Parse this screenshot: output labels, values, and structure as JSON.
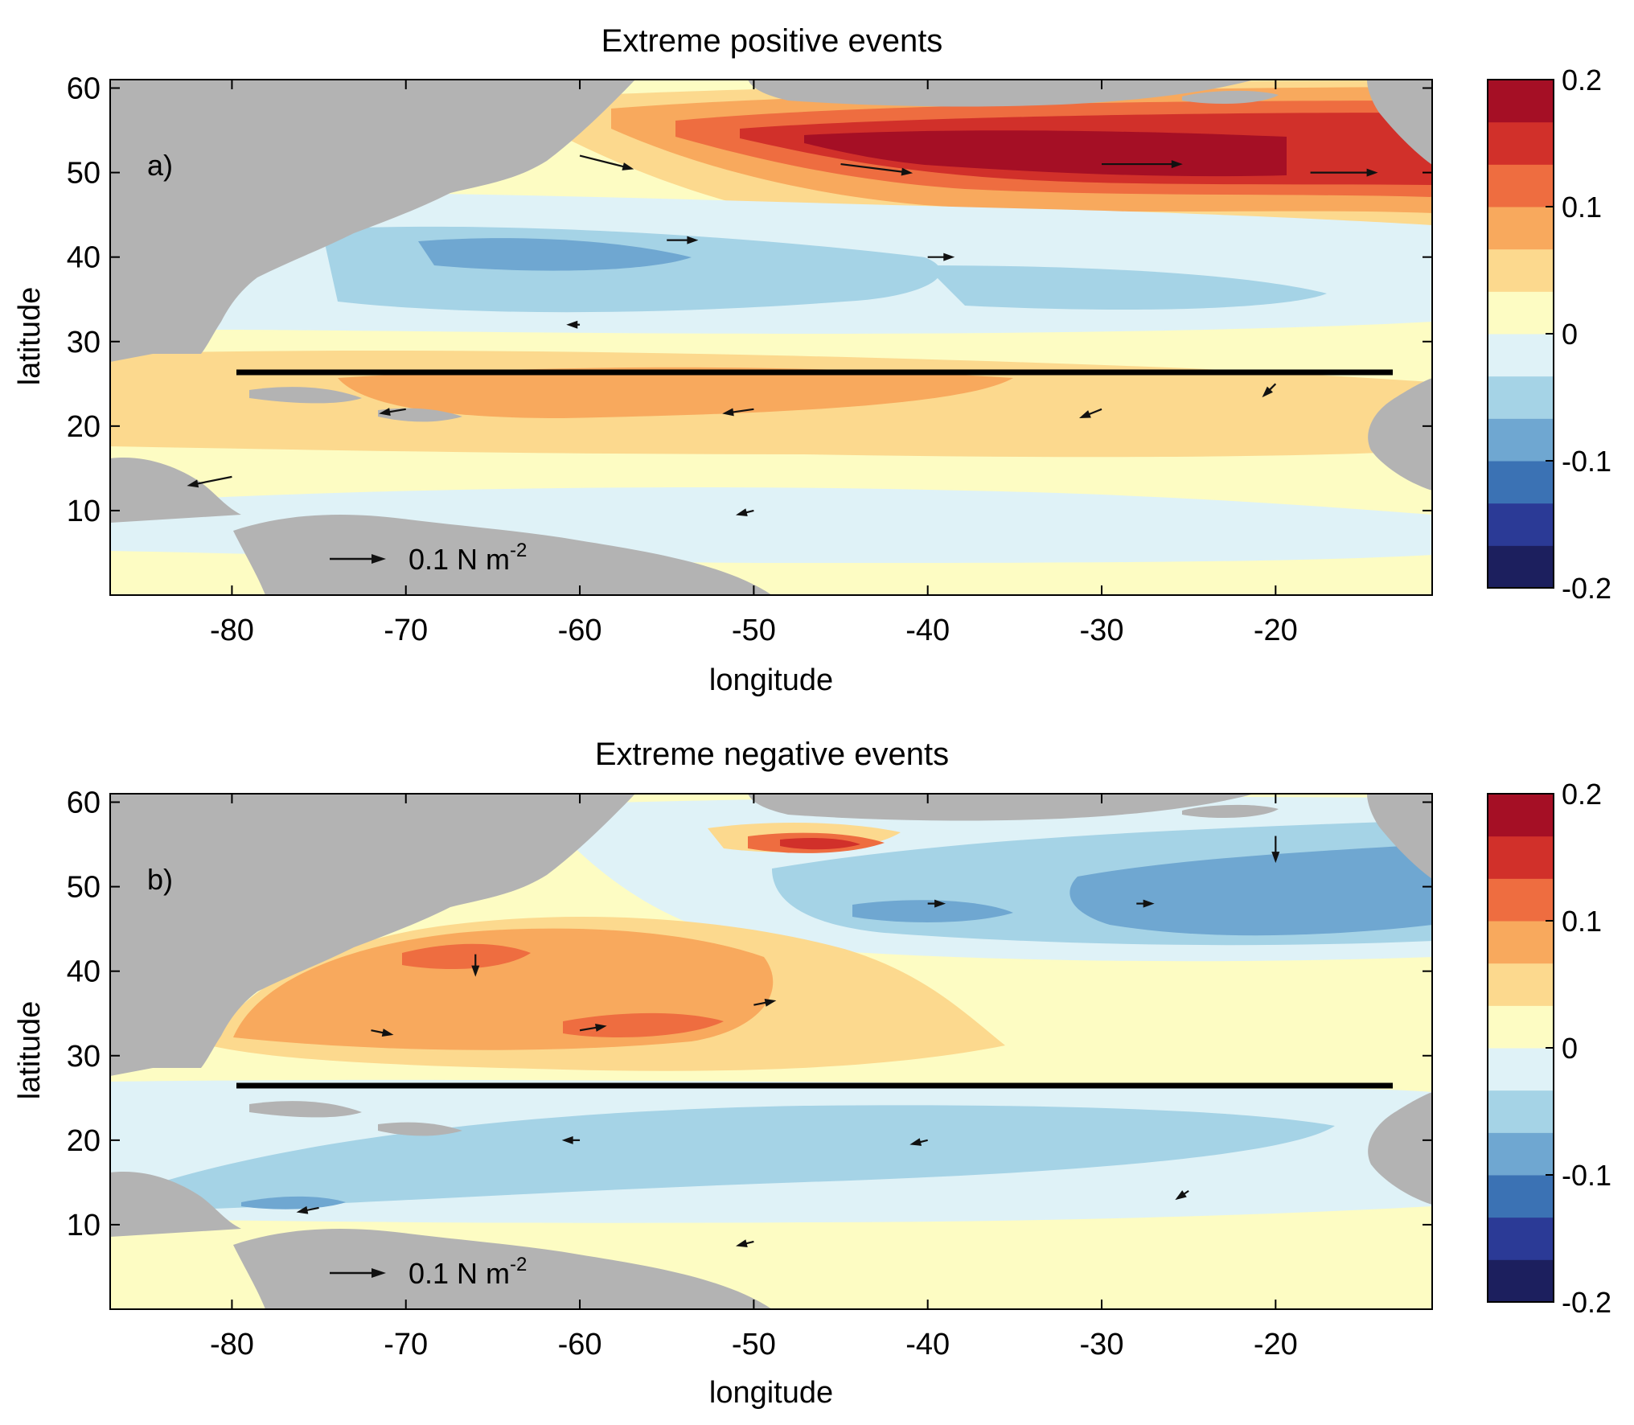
{
  "figure": {
    "ocean_base_color": "#fdfcc3",
    "land_color": "#b3b3b3",
    "vector_color": "#111111",
    "section_line_color": "#000000"
  },
  "colorbar": {
    "colors": [
      "#1c1f5e",
      "#2b3a96",
      "#3b72b4",
      "#6fa7d1",
      "#a5d3e6",
      "#dff2f7",
      "#fdfcc3",
      "#fcd98e",
      "#f8a95d",
      "#ee6d40",
      "#d1302a",
      "#a50f25"
    ],
    "tick_values": [
      "0.2",
      "0.1",
      "0",
      "-0.1",
      "-0.2"
    ]
  },
  "panels": [
    {
      "title": "Extreme positive events",
      "letter": "a)",
      "xlabel": "longitude",
      "ylabel": "latitude",
      "xticks": [
        "-80",
        "-70",
        "-60",
        "-50",
        "-40",
        "-30",
        "-20"
      ],
      "yticks": [
        "60",
        "50",
        "40",
        "30",
        "20",
        "10"
      ],
      "scale_label": "0.1 N m",
      "scale_exp": "-2",
      "section_latitude": 26.5,
      "chart_data": {
        "type": "heatmap",
        "x_range_deg_lon": [
          -87,
          -11
        ],
        "y_range_deg_lat": [
          0,
          61
        ],
        "colorbar_range": [
          -0.2,
          0.2
        ],
        "anomaly_features": [
          {
            "lon": -30,
            "lat": 51,
            "value": 0.17
          },
          {
            "lon": -42,
            "lat": 53,
            "value": 0.15
          },
          {
            "lon": -55,
            "lat": 52,
            "value": 0.07
          },
          {
            "lon": -55,
            "lat": 24,
            "value": 0.07
          },
          {
            "lon": -75,
            "lat": 21,
            "value": 0.04
          },
          {
            "lon": -60,
            "lat": 37,
            "value": -0.06
          },
          {
            "lon": -35,
            "lat": 36,
            "value": -0.04
          },
          {
            "lon": -40,
            "lat": 12,
            "value": -0.03
          }
        ],
        "wind_stress_vectors": [
          {
            "lon": -60,
            "lat": 52,
            "u": 0.12,
            "v": -0.03
          },
          {
            "lon": -45,
            "lat": 51,
            "u": 0.16,
            "v": -0.02
          },
          {
            "lon": -30,
            "lat": 51,
            "u": 0.18,
            "v": 0.0
          },
          {
            "lon": -18,
            "lat": 50,
            "u": 0.15,
            "v": 0.0
          },
          {
            "lon": -55,
            "lat": 42,
            "u": 0.07,
            "v": 0.0
          },
          {
            "lon": -40,
            "lat": 40,
            "u": 0.06,
            "v": 0.0
          },
          {
            "lon": -60,
            "lat": 32,
            "u": -0.03,
            "v": 0.0
          },
          {
            "lon": -70,
            "lat": 22,
            "u": -0.06,
            "v": -0.01
          },
          {
            "lon": -50,
            "lat": 22,
            "u": -0.07,
            "v": -0.01
          },
          {
            "lon": -30,
            "lat": 22,
            "u": -0.05,
            "v": -0.02
          },
          {
            "lon": -80,
            "lat": 14,
            "u": -0.1,
            "v": -0.02
          },
          {
            "lon": -50,
            "lat": 10,
            "u": -0.04,
            "v": -0.01
          },
          {
            "lon": -20,
            "lat": 25,
            "u": -0.03,
            "v": -0.03
          }
        ]
      }
    },
    {
      "title": "Extreme negative events",
      "letter": "b)",
      "xlabel": "longitude",
      "ylabel": "latitude",
      "xticks": [
        "-80",
        "-70",
        "-60",
        "-50",
        "-40",
        "-30",
        "-20"
      ],
      "yticks": [
        "60",
        "50",
        "40",
        "30",
        "20",
        "10"
      ],
      "scale_label": "0.1 N m",
      "scale_exp": "-2",
      "section_latitude": 26.5,
      "chart_data": {
        "type": "heatmap",
        "x_range_deg_lon": [
          -87,
          -11
        ],
        "y_range_deg_lat": [
          0,
          61
        ],
        "colorbar_range": [
          -0.2,
          0.2
        ],
        "anomaly_features": [
          {
            "lon": -46,
            "lat": 55,
            "value": 0.12
          },
          {
            "lon": -68,
            "lat": 40,
            "value": 0.09
          },
          {
            "lon": -62,
            "lat": 33,
            "value": 0.07
          },
          {
            "lon": -65,
            "lat": 36,
            "value": 0.05
          },
          {
            "lon": -28,
            "lat": 48,
            "value": -0.09
          },
          {
            "lon": -42,
            "lat": 47,
            "value": -0.07
          },
          {
            "lon": -55,
            "lat": 18,
            "value": -0.05
          },
          {
            "lon": -78,
            "lat": 12,
            "value": -0.08
          }
        ],
        "wind_stress_vectors": [
          {
            "lon": -72,
            "lat": 33,
            "u": 0.05,
            "v": -0.01
          },
          {
            "lon": -60,
            "lat": 33,
            "u": 0.06,
            "v": 0.01
          },
          {
            "lon": -50,
            "lat": 36,
            "u": 0.05,
            "v": 0.01
          },
          {
            "lon": -66,
            "lat": 42,
            "u": 0.0,
            "v": -0.05
          },
          {
            "lon": -40,
            "lat": 48,
            "u": 0.04,
            "v": 0.0
          },
          {
            "lon": -28,
            "lat": 48,
            "u": 0.04,
            "v": 0.0
          },
          {
            "lon": -20,
            "lat": 56,
            "u": 0.0,
            "v": -0.06
          },
          {
            "lon": -60,
            "lat": 20,
            "u": -0.04,
            "v": 0.0
          },
          {
            "lon": -40,
            "lat": 20,
            "u": -0.04,
            "v": -0.01
          },
          {
            "lon": -75,
            "lat": 12,
            "u": -0.05,
            "v": -0.01
          },
          {
            "lon": -50,
            "lat": 8,
            "u": -0.04,
            "v": -0.01
          },
          {
            "lon": -25,
            "lat": 14,
            "u": -0.03,
            "v": -0.02
          }
        ]
      }
    }
  ]
}
